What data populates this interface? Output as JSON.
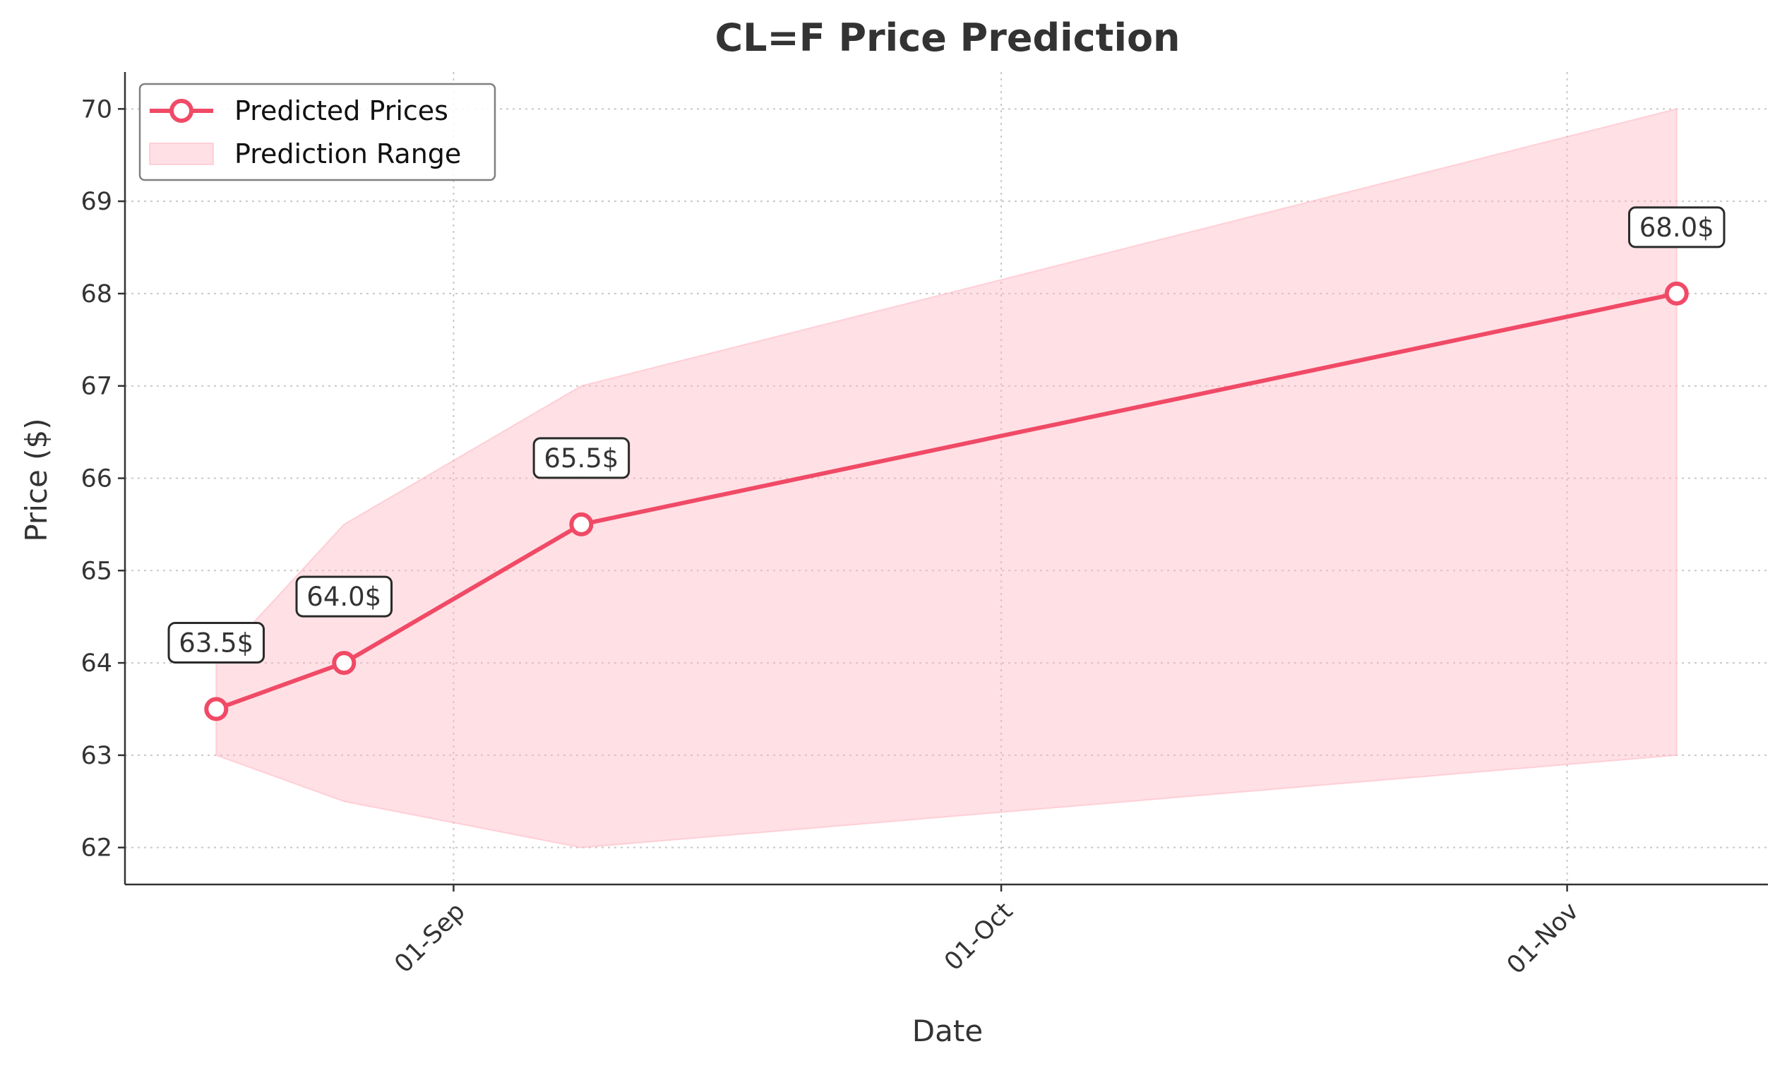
{
  "colors": {
    "line": "#f04a66",
    "band": "#ffb6c1",
    "text": "#333333"
  },
  "chart_data": {
    "type": "line",
    "title": "CL=F Price Prediction",
    "xlabel": "Date",
    "ylabel": "Price ($)",
    "x": [
      "08-19",
      "08-26",
      "09-08",
      "11-07"
    ],
    "series": [
      {
        "name": "Predicted Prices",
        "values": [
          63.5,
          64.0,
          65.5,
          68.0
        ]
      }
    ],
    "range": {
      "name": "Prediction Range",
      "upper": [
        64.0,
        65.5,
        67.0,
        70.0
      ],
      "lower": [
        63.0,
        62.5,
        62.0,
        63.0
      ]
    },
    "point_labels": [
      "63.5$",
      "64.0$",
      "65.5$",
      "68.0$"
    ],
    "x_ticks": [
      {
        "date": "09-01",
        "label": "01-Sep"
      },
      {
        "date": "10-01",
        "label": "01-Oct"
      },
      {
        "date": "11-01",
        "label": "01-Nov"
      }
    ],
    "xlim": [
      "08-14",
      "11-12"
    ],
    "y_ticks": [
      62,
      63,
      64,
      65,
      66,
      67,
      68,
      69,
      70
    ],
    "ylim": [
      61.6,
      70.4
    ],
    "grid": true,
    "legend_position": "top-left"
  }
}
